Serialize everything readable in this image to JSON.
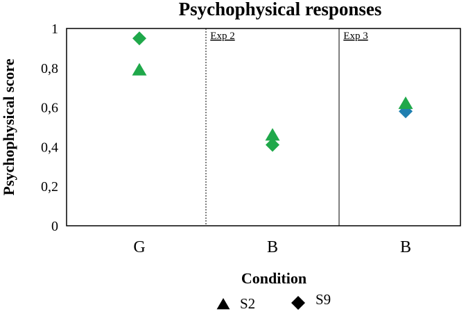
{
  "chart_data": {
    "type": "scatter",
    "title": "Psychophysical responses",
    "xlabel": "",
    "ylabel": "Psychophysical score",
    "ylim": [
      0,
      1
    ],
    "yticks": [
      "0",
      "0,2",
      "0,4",
      "0,6",
      "0,8",
      "1"
    ],
    "categories": [
      "G",
      "B",
      "B"
    ],
    "legend_title": "Condition",
    "legend_position": "bottom-center",
    "grid": false,
    "sections": [
      {
        "label": "Exp 2",
        "boundary_after_category": 0,
        "line_style": "dotted"
      },
      {
        "label": "Exp 3",
        "boundary_after_category": 1,
        "line_style": "solid"
      }
    ],
    "series": [
      {
        "name": "S2",
        "marker": "triangle",
        "values": [
          0.79,
          0.46,
          0.62
        ]
      },
      {
        "name": "S9",
        "marker": "diamond",
        "values": [
          0.95,
          0.41,
          0.58
        ]
      }
    ],
    "colors": {
      "primary_marker": "#1fa84a",
      "exp3_s9_marker": "#1f7fb0",
      "legend_marker": "#000000"
    }
  }
}
